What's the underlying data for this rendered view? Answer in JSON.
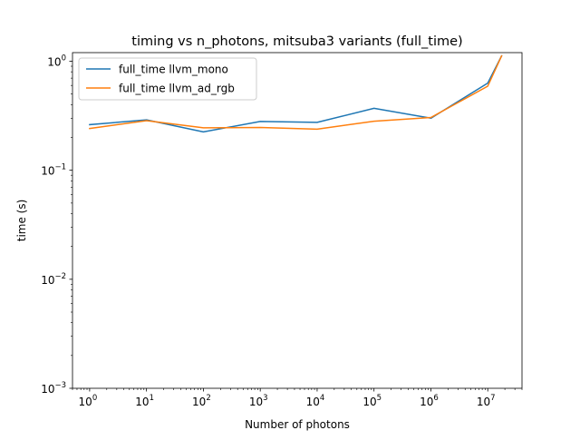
{
  "chart_data": {
    "type": "line",
    "title": "timing vs n_photons, mitsuba3 variants (full_time)",
    "xlabel": "Number of photons",
    "ylabel": "time (s)",
    "xscale": "log",
    "yscale": "log",
    "xlim": [
      0.5,
      40000000
    ],
    "ylim": [
      0.001,
      1.2
    ],
    "x_ticks": [
      {
        "base": "10",
        "exp": "0"
      },
      {
        "base": "10",
        "exp": "1"
      },
      {
        "base": "10",
        "exp": "2"
      },
      {
        "base": "10",
        "exp": "3"
      },
      {
        "base": "10",
        "exp": "4"
      },
      {
        "base": "10",
        "exp": "5"
      },
      {
        "base": "10",
        "exp": "6"
      },
      {
        "base": "10",
        "exp": "7"
      }
    ],
    "y_ticks": [
      {
        "base": "10",
        "exp": "−3"
      },
      {
        "base": "10",
        "exp": "−2"
      },
      {
        "base": "10",
        "exp": "−1"
      },
      {
        "base": "10",
        "exp": "0"
      }
    ],
    "grid": false,
    "legend_position": "top-left",
    "x": [
      1,
      10,
      100,
      1000,
      10000,
      100000,
      1000000,
      10000000,
      17500000
    ],
    "series": [
      {
        "name": "full_time llvm_mono",
        "color": "#1f77b4",
        "values": [
          0.262,
          0.29,
          0.225,
          0.28,
          0.275,
          0.37,
          0.3,
          0.63,
          1.12
        ]
      },
      {
        "name": "full_time llvm_ad_rgb",
        "color": "#ff7f0e",
        "values": [
          0.242,
          0.285,
          0.245,
          0.247,
          0.238,
          0.282,
          0.305,
          0.59,
          1.12
        ]
      }
    ]
  }
}
